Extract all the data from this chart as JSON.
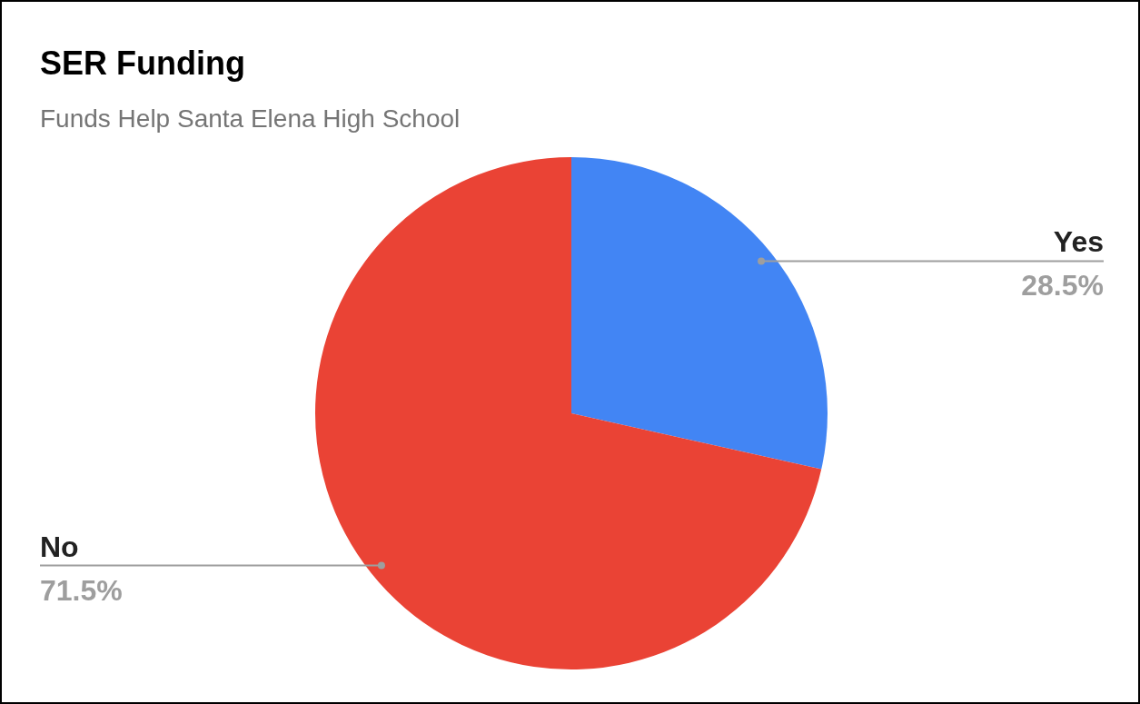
{
  "chart_data": {
    "type": "pie",
    "title": "SER Funding",
    "subtitle": "Funds Help Santa Elena High School",
    "categories": [
      "Yes",
      "No"
    ],
    "values": [
      28.5,
      71.5
    ],
    "colors": [
      "#4285f4",
      "#ea4335"
    ],
    "value_labels": [
      "28.5%",
      "71.5%"
    ]
  }
}
